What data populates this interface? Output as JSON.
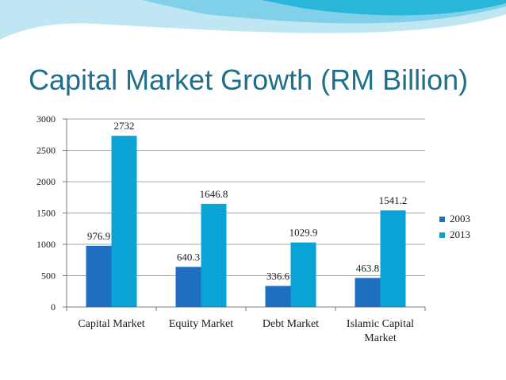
{
  "slide": {
    "title": "Capital Market Growth (RM Billion)"
  },
  "colors": {
    "accent_teal": "#29b6d8",
    "title": "#1f6f8b",
    "bar_2003": "#1e6fc2",
    "bar_2013": "#0aa3d6"
  },
  "chart_data": {
    "type": "bar",
    "title": "Capital Market Growth (RM Billion)",
    "categories": [
      [
        "Capital Market"
      ],
      [
        "Equity Market"
      ],
      [
        "Debt Market"
      ],
      [
        "Islamic Capital",
        "Market"
      ]
    ],
    "series": [
      {
        "name": "2003",
        "values": [
          976.9,
          640.3,
          336.6,
          463.8
        ],
        "labels": [
          "976.9",
          "640.3",
          "336.6",
          "463.8"
        ]
      },
      {
        "name": "2013",
        "values": [
          2732,
          1646.8,
          1029.9,
          1541.2
        ],
        "labels": [
          "2732",
          "1646.8",
          "1029.9",
          "1541.2"
        ]
      }
    ],
    "yticks": [
      "0",
      "500",
      "1000",
      "1500",
      "2000",
      "2500",
      "3000"
    ],
    "ylim": [
      0,
      3000
    ],
    "grid": true,
    "legend": "right"
  }
}
